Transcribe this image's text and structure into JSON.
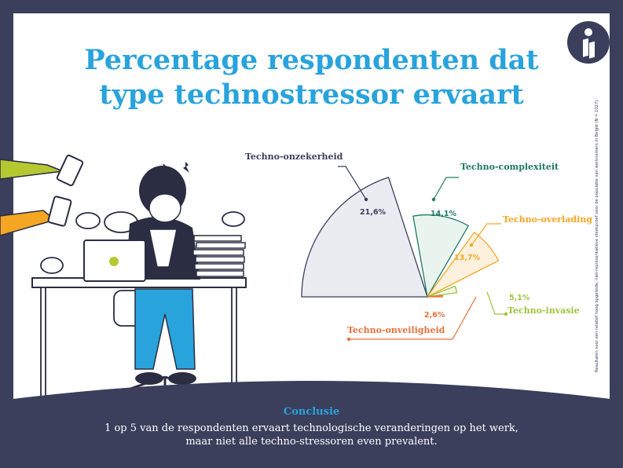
{
  "title": {
    "line1": "Percentage respondenten dat",
    "line2": "type technostressor ervaart"
  },
  "side_note": "Resultaten voor een relatief hoog opgeleide, niet-representatieve steekproef voor de populatie van werknemers in België (N = 1027).",
  "conclusion": {
    "heading": "Conclusie",
    "line1": "1 op 5 van de respondenten ervaart technologische veranderingen op het werk,",
    "line2": "maar niet alle techno-stressoren even prevalent."
  },
  "colors": {
    "background": "#3b3f5c",
    "title": "#29a3dc"
  },
  "chart_data": {
    "type": "pie",
    "variant": "polar-area",
    "series": [
      {
        "name": "Techno-onzekerheid",
        "value": 21.6,
        "value_label": "21,6%",
        "color": "#3b3f5c",
        "fill": "#ebecf2"
      },
      {
        "name": "Techno-complexiteit",
        "value": 14.1,
        "value_label": "14,1%",
        "color": "#1e7a5f",
        "fill": "#eaf4ef"
      },
      {
        "name": "Techno-overlading",
        "value": 13.7,
        "value_label": "13,7%",
        "color": "#f5a623",
        "fill": "#fdf1de"
      },
      {
        "name": "Techno-invasie",
        "value": 5.1,
        "value_label": "5,1%",
        "color": "#9cc43c",
        "fill": "#f3f8e6"
      },
      {
        "name": "Techno-onveiligheid",
        "value": 2.6,
        "value_label": "2,6%",
        "color": "#e8703a",
        "fill": "#fde9df"
      }
    ]
  },
  "icons": [
    "logo-icon",
    "lightning-icon",
    "smartphone-icon",
    "speech-bubble-icon"
  ]
}
